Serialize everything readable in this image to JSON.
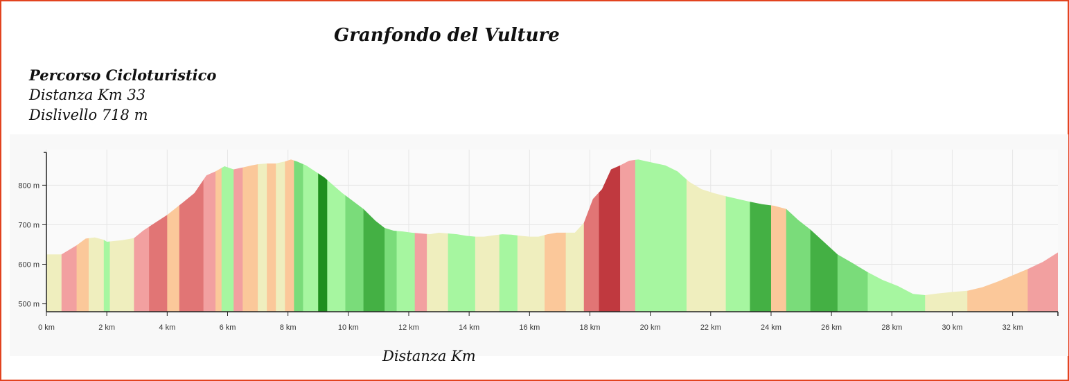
{
  "title": "Granfondo del Vulture",
  "route": {
    "name": "Percorso Cicloturistico",
    "distance": "Distanza Km 33",
    "elevation_gain": "Dislivello 718 m"
  },
  "chart_data": {
    "type": "area",
    "xlabel": "Distanza Km",
    "xlim": [
      0,
      33.5
    ],
    "ylim": [
      480,
      890
    ],
    "x_ticks": [
      {
        "value": 0,
        "label": "0 km"
      },
      {
        "value": 2,
        "label": "2 km"
      },
      {
        "value": 4,
        "label": "4 km"
      },
      {
        "value": 6,
        "label": "6 km"
      },
      {
        "value": 8,
        "label": "8 km"
      },
      {
        "value": 10,
        "label": "10 km"
      },
      {
        "value": 12,
        "label": "12 km"
      },
      {
        "value": 14,
        "label": "14 km"
      },
      {
        "value": 16,
        "label": "16 km"
      },
      {
        "value": 18,
        "label": "18 km"
      },
      {
        "value": 20,
        "label": "20 km"
      },
      {
        "value": 22,
        "label": "22 km"
      },
      {
        "value": 24,
        "label": "24 km"
      },
      {
        "value": 26,
        "label": "26 km"
      },
      {
        "value": 28,
        "label": "28 km"
      },
      {
        "value": 30,
        "label": "30 km"
      },
      {
        "value": 32,
        "label": "32 km"
      }
    ],
    "y_ticks": [
      {
        "value": 500,
        "label": "500 m"
      },
      {
        "value": 600,
        "label": "600 m"
      },
      {
        "value": 700,
        "label": "700 m"
      },
      {
        "value": 800,
        "label": "800 m"
      }
    ],
    "grid": true,
    "slope_colors": {
      "steep_climb": "#c0393f",
      "climb": "#e17575",
      "moderate_climb": "#f2a0a0",
      "gentle_climb": "#fbc89a",
      "flat": "#efeebe",
      "gentle_descent": "#a6f6a0",
      "descent": "#7adc7a",
      "steep_descent": "#44b044",
      "very_steep_descent": "#1e8f1e"
    },
    "x": [
      0,
      0.5,
      1.0,
      1.3,
      1.6,
      1.9,
      2.0,
      2.5,
      2.9,
      3.2,
      3.5,
      4.0,
      4.5,
      4.9,
      5.3,
      5.6,
      5.9,
      6.2,
      6.5,
      6.8,
      7.0,
      7.3,
      7.6,
      7.9,
      8.1,
      8.3,
      8.6,
      8.9,
      9.2,
      9.5,
      9.8,
      10.1,
      10.5,
      10.9,
      11.2,
      11.5,
      11.8,
      12.1,
      12.4,
      12.7,
      13.0,
      13.3,
      13.6,
      13.9,
      14.2,
      14.5,
      14.8,
      15.1,
      15.4,
      15.7,
      16.0,
      16.3,
      16.6,
      16.9,
      17.2,
      17.5,
      17.8,
      18.1,
      18.4,
      18.7,
      19.0,
      19.3,
      19.6,
      19.9,
      20.2,
      20.5,
      20.9,
      21.3,
      21.7,
      22.1,
      22.5,
      22.9,
      23.3,
      23.7,
      24.1,
      24.5,
      24.9,
      25.3,
      25.7,
      26.2,
      26.7,
      27.2,
      27.7,
      28.2,
      28.7,
      29.1,
      29.5,
      30.0,
      30.5,
      31.0,
      31.5,
      32.0,
      32.5,
      33.0,
      33.5
    ],
    "elevation": [
      625,
      625,
      648,
      665,
      668,
      662,
      657,
      661,
      666,
      685,
      700,
      725,
      755,
      780,
      825,
      835,
      848,
      840,
      845,
      850,
      853,
      855,
      855,
      860,
      865,
      860,
      850,
      835,
      820,
      800,
      780,
      763,
      740,
      710,
      692,
      685,
      683,
      680,
      678,
      676,
      680,
      678,
      676,
      672,
      670,
      670,
      673,
      676,
      675,
      672,
      670,
      670,
      676,
      680,
      680,
      680,
      705,
      765,
      790,
      840,
      850,
      862,
      865,
      860,
      855,
      850,
      835,
      808,
      790,
      780,
      772,
      765,
      758,
      752,
      748,
      740,
      712,
      688,
      660,
      625,
      603,
      580,
      560,
      545,
      525,
      522,
      526,
      530,
      533,
      542,
      556,
      572,
      588,
      606,
      630
    ],
    "segments": [
      {
        "from": 0,
        "to": 0.5,
        "slope": "flat"
      },
      {
        "from": 0.5,
        "to": 1.0,
        "slope": "moderate_climb"
      },
      {
        "from": 1.0,
        "to": 1.4,
        "slope": "gentle_climb"
      },
      {
        "from": 1.4,
        "to": 1.9,
        "slope": "flat"
      },
      {
        "from": 1.9,
        "to": 2.1,
        "slope": "gentle_descent"
      },
      {
        "from": 2.1,
        "to": 2.9,
        "slope": "flat"
      },
      {
        "from": 2.9,
        "to": 3.4,
        "slope": "moderate_climb"
      },
      {
        "from": 3.4,
        "to": 4.0,
        "slope": "climb"
      },
      {
        "from": 4.0,
        "to": 4.4,
        "slope": "gentle_climb"
      },
      {
        "from": 4.4,
        "to": 5.2,
        "slope": "climb"
      },
      {
        "from": 5.2,
        "to": 5.6,
        "slope": "moderate_climb"
      },
      {
        "from": 5.6,
        "to": 5.8,
        "slope": "gentle_climb"
      },
      {
        "from": 5.8,
        "to": 6.2,
        "slope": "gentle_descent"
      },
      {
        "from": 6.2,
        "to": 6.5,
        "slope": "moderate_climb"
      },
      {
        "from": 6.5,
        "to": 7.0,
        "slope": "gentle_climb"
      },
      {
        "from": 7.0,
        "to": 7.3,
        "slope": "flat"
      },
      {
        "from": 7.3,
        "to": 7.6,
        "slope": "gentle_climb"
      },
      {
        "from": 7.6,
        "to": 7.9,
        "slope": "flat"
      },
      {
        "from": 7.9,
        "to": 8.2,
        "slope": "gentle_climb"
      },
      {
        "from": 8.2,
        "to": 8.5,
        "slope": "descent"
      },
      {
        "from": 8.5,
        "to": 9.0,
        "slope": "gentle_descent"
      },
      {
        "from": 9.0,
        "to": 9.3,
        "slope": "very_steep_descent"
      },
      {
        "from": 9.3,
        "to": 9.9,
        "slope": "gentle_descent"
      },
      {
        "from": 9.9,
        "to": 10.5,
        "slope": "descent"
      },
      {
        "from": 10.5,
        "to": 11.2,
        "slope": "steep_descent"
      },
      {
        "from": 11.2,
        "to": 11.6,
        "slope": "descent"
      },
      {
        "from": 11.6,
        "to": 12.2,
        "slope": "gentle_descent"
      },
      {
        "from": 12.2,
        "to": 12.6,
        "slope": "moderate_climb"
      },
      {
        "from": 12.6,
        "to": 13.3,
        "slope": "flat"
      },
      {
        "from": 13.3,
        "to": 14.2,
        "slope": "gentle_descent"
      },
      {
        "from": 14.2,
        "to": 15.0,
        "slope": "flat"
      },
      {
        "from": 15.0,
        "to": 15.6,
        "slope": "gentle_descent"
      },
      {
        "from": 15.6,
        "to": 16.5,
        "slope": "flat"
      },
      {
        "from": 16.5,
        "to": 17.2,
        "slope": "gentle_climb"
      },
      {
        "from": 17.2,
        "to": 17.8,
        "slope": "flat"
      },
      {
        "from": 17.8,
        "to": 18.3,
        "slope": "climb"
      },
      {
        "from": 18.3,
        "to": 19.0,
        "slope": "steep_climb"
      },
      {
        "from": 19.0,
        "to": 19.5,
        "slope": "moderate_climb"
      },
      {
        "from": 19.5,
        "to": 20.2,
        "slope": "gentle_descent"
      },
      {
        "from": 20.2,
        "to": 21.2,
        "slope": "gentle_descent"
      },
      {
        "from": 21.2,
        "to": 22.5,
        "slope": "flat"
      },
      {
        "from": 22.5,
        "to": 23.3,
        "slope": "gentle_descent"
      },
      {
        "from": 23.3,
        "to": 24.0,
        "slope": "steep_descent"
      },
      {
        "from": 24.0,
        "to": 24.5,
        "slope": "gentle_climb"
      },
      {
        "from": 24.5,
        "to": 25.3,
        "slope": "descent"
      },
      {
        "from": 25.3,
        "to": 26.2,
        "slope": "steep_descent"
      },
      {
        "from": 26.2,
        "to": 27.2,
        "slope": "descent"
      },
      {
        "from": 27.2,
        "to": 28.2,
        "slope": "gentle_descent"
      },
      {
        "from": 28.2,
        "to": 29.1,
        "slope": "gentle_descent"
      },
      {
        "from": 29.1,
        "to": 30.5,
        "slope": "flat"
      },
      {
        "from": 30.5,
        "to": 31.5,
        "slope": "gentle_climb"
      },
      {
        "from": 31.5,
        "to": 32.5,
        "slope": "gentle_climb"
      },
      {
        "from": 32.5,
        "to": 33.5,
        "slope": "moderate_climb"
      }
    ]
  }
}
